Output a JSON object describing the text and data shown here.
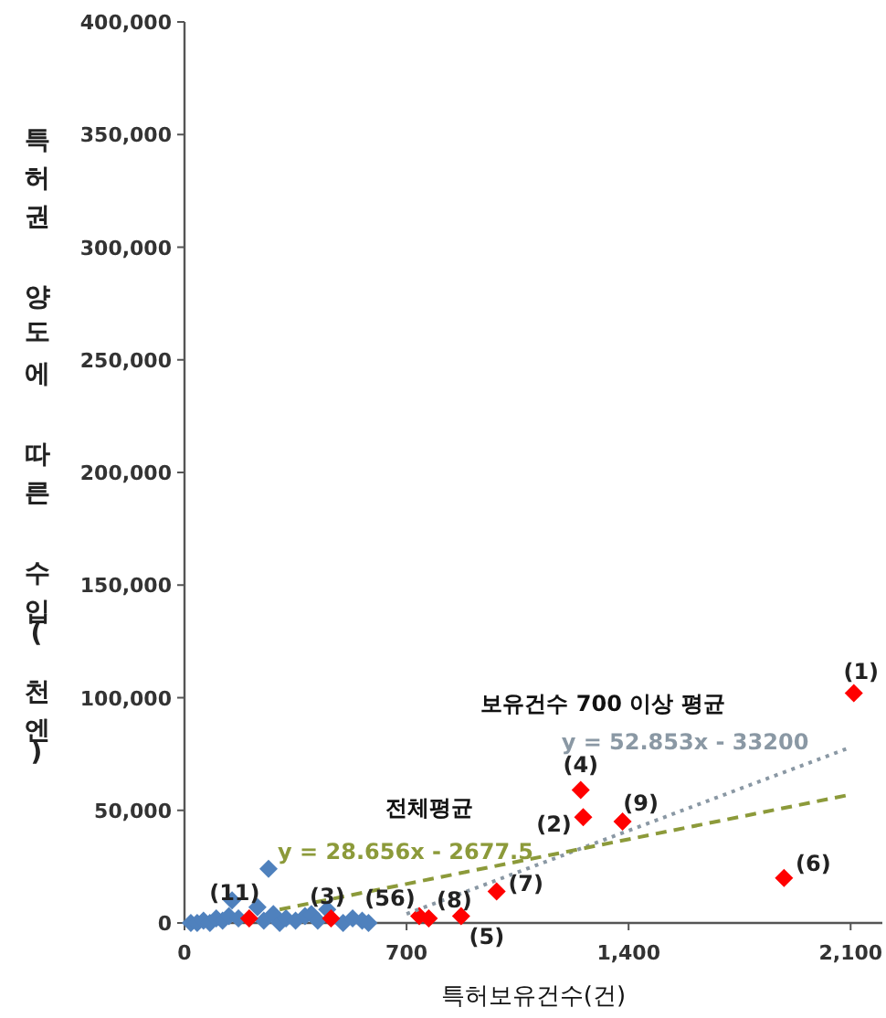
{
  "chart_data": {
    "type": "scatter",
    "xlabel": "특허보유건수(건)",
    "ylabel": "특허권 양도에 따른 수입(천엔)",
    "xlim": [
      0,
      2200
    ],
    "ylim": [
      0,
      400000
    ],
    "xticks": [
      0,
      {
        "value": 700,
        "label": "700"
      },
      {
        "value": 1400,
        "label": "1,400"
      },
      {
        "value": 2100,
        "label": "2,100"
      }
    ],
    "yticks": [
      0,
      {
        "value": 50000,
        "label": "50,000"
      },
      {
        "value": 100000,
        "label": "100,000"
      },
      {
        "value": 150000,
        "label": "150,000"
      },
      {
        "value": 200000,
        "label": "200,000"
      },
      {
        "value": 250000,
        "label": "250,000"
      },
      {
        "value": 300000,
        "label": "300,000"
      },
      {
        "value": 350000,
        "label": "350,000"
      },
      {
        "value": 400000,
        "label": "400,000"
      }
    ],
    "grid": false,
    "marker": "diamond",
    "series": [
      {
        "color": "#4f81bd",
        "x": [
          20,
          40,
          60,
          80,
          100,
          120,
          140,
          150,
          170,
          230,
          250,
          265,
          280,
          300,
          320,
          350,
          380,
          400,
          420,
          450,
          500,
          530,
          560,
          580
        ],
        "values": [
          0,
          0,
          1000,
          0,
          2000,
          1000,
          3000,
          10000,
          2000,
          7000,
          1000,
          24000,
          4000,
          0,
          2000,
          1000,
          3000,
          4000,
          1000,
          6000,
          0,
          2000,
          1000,
          0
        ]
      },
      {
        "color": "#ff0000",
        "x": [
          2110,
          1249,
          1257,
          1381,
          1890,
          984,
          740,
          770,
          872,
          204,
          462
        ],
        "values": [
          102000,
          59000,
          47000,
          45000,
          20000,
          14000,
          3000,
          2000,
          3000,
          2000,
          2000
        ]
      },
      {
        "type": "line",
        "color": "#8a98a4",
        "line_style": "dotted",
        "marker": "none",
        "x": [
          700,
          2100
        ],
        "values": [
          4000,
          78000
        ]
      },
      {
        "type": "line",
        "color": "#8c9a3a",
        "line_style": "dashed",
        "marker": "none",
        "x": [
          300,
          2100
        ],
        "values": [
          6000,
          57000
        ]
      }
    ],
    "annotations": [
      {
        "text": "(1)",
        "x": 2110,
        "y": 102000
      },
      {
        "text": "(4)",
        "x": 1249,
        "y": 59000
      },
      {
        "text": "(2)",
        "x": 1257,
        "y": 47000
      },
      {
        "text": "(9)",
        "x": 1381,
        "y": 45000
      },
      {
        "text": "(6)",
        "x": 1890,
        "y": 20000
      },
      {
        "text": "(7)",
        "x": 984,
        "y": 14000
      },
      {
        "text": "(56)",
        "x": 740,
        "y": 3000
      },
      {
        "text": "(8)",
        "x": 770,
        "y": 2000
      },
      {
        "text": "(5)",
        "x": 872,
        "y": 3000
      },
      {
        "text": "(11)",
        "x": 204,
        "y": 2000
      },
      {
        "text": "(3)",
        "x": 462,
        "y": 2000
      },
      "보유건수 700 이상 평균",
      "y = 52.853x - 33200",
      "전체평균",
      "y = 28.656x - 2677.5"
    ]
  }
}
